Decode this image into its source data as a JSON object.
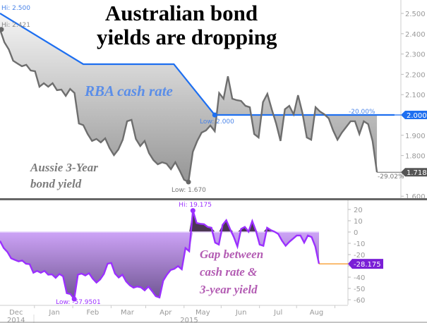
{
  "chart_data": [
    {
      "type": "area",
      "title": "Australian bond yields are dropping",
      "title_lines": [
        "Australian bond",
        "yields are dropping"
      ],
      "start_date": "2014-12-02",
      "day_step": 3,
      "series": [
        {
          "name": "Aussie 3-Year bond yield",
          "label_lines": [
            "Aussie 3-Year",
            "bond yield"
          ],
          "color": "#6e6e6e",
          "values": [
            2.421,
            2.358,
            2.323,
            2.267,
            2.253,
            2.24,
            2.247,
            2.219,
            2.215,
            2.139,
            2.156,
            2.139,
            2.156,
            2.122,
            2.125,
            2.094,
            2.128,
            2.108,
            1.958,
            1.95,
            1.906,
            1.872,
            1.882,
            1.865,
            1.885,
            1.837,
            1.802,
            1.83,
            1.878,
            1.969,
            1.976,
            1.882,
            1.847,
            1.872,
            1.812,
            1.778,
            1.757,
            1.767,
            1.76,
            1.733,
            1.767,
            1.726,
            1.681,
            1.67,
            1.819,
            1.872,
            1.913,
            1.924,
            1.948,
            1.92,
            2.108,
            2.08,
            2.19,
            2.08,
            2.073,
            2.069,
            2.045,
            2.038,
            1.906,
            1.889,
            2.063,
            2.104,
            2.028,
            1.958,
            1.872,
            2.028,
            2.045,
            2.003,
            2.097,
            2.01,
            1.889,
            1.878,
            2.038,
            2.017,
            2.003,
            1.983,
            1.924,
            1.878,
            1.913,
            1.941,
            1.969,
            1.969,
            1.906,
            1.969,
            1.955,
            1.872,
            1.718
          ],
          "last_value": "1.718",
          "change_label": "-29.02%",
          "hi_label": "Hi: 2.421",
          "low_label": "Low: 1.670"
        },
        {
          "name": "RBA cash rate",
          "color": "#1e6ff0",
          "line_points": [
            [
              0,
              2.5
            ],
            [
              57,
              2.25
            ],
            [
              119,
              2.25
            ],
            [
              147,
              2.0
            ],
            [
              270,
              2.0
            ]
          ],
          "changes": [
            [
              0,
              2.5
            ],
            [
              63,
              2.25
            ],
            [
              154,
              2.0
            ]
          ],
          "last_value": "2.000",
          "change_label": "-20.00%",
          "hi_label": "Hi: 2.500",
          "low_label": "Low: 2.000"
        }
      ],
      "yaxis": {
        "ylim": [
          1.6,
          2.55
        ],
        "ticks": [
          "2.500",
          "2.400",
          "2.300",
          "2.200",
          "2.100",
          "1.900",
          "1.800",
          "1.600"
        ],
        "tick_values": [
          2.5,
          2.4,
          2.3,
          2.2,
          2.1,
          1.9,
          1.8,
          1.6
        ]
      }
    },
    {
      "type": "area",
      "name": "Gap between cash rate & 3-year yield",
      "label_lines": [
        "Gap between",
        "cash rate &",
        "3-year yield"
      ],
      "color": "#9b30ff",
      "last_value": "-28.175",
      "hi_label": "Hi: 19.175",
      "low_label": "Low: -57.9501",
      "yaxis": {
        "ylim": [
          -65,
          25
        ],
        "ticks": [
          "20",
          "10",
          "0",
          "-10",
          "-20",
          "-40",
          "-50",
          "-60"
        ],
        "tick_values": [
          20,
          10,
          0,
          -10,
          -20,
          -40,
          -50,
          -60
        ]
      },
      "xaxis": {
        "months": [
          "Dec",
          "Jan",
          "Feb",
          "Mar",
          "Apr",
          "May",
          "Jun",
          "Jul",
          "Aug"
        ],
        "month_days": [
          13,
          44,
          75,
          103,
          134,
          164,
          195,
          225,
          256
        ],
        "years": [
          "2014",
          "2015"
        ]
      }
    }
  ]
}
